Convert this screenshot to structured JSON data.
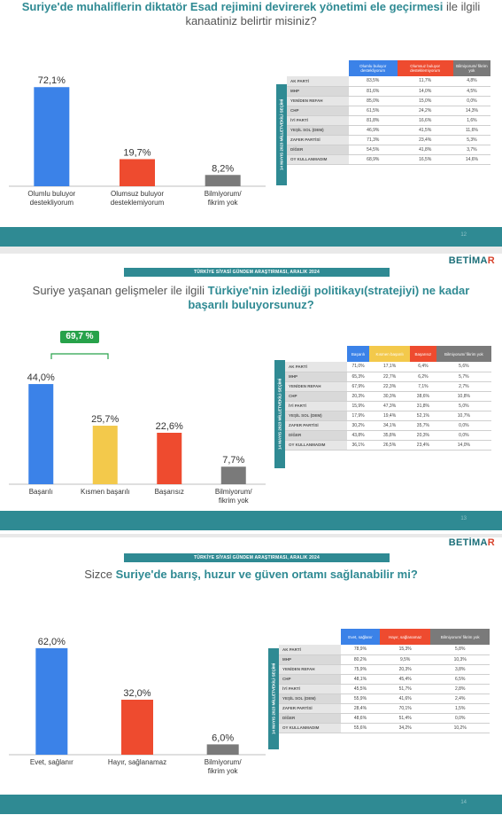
{
  "colors": {
    "blue": "#3b82e8",
    "red": "#ee4b2f",
    "yellow": "#f3c94b",
    "grey": "#7a7a7a",
    "teal": "#2f8a93",
    "green": "#27a24a"
  },
  "panel1": {
    "question_bold": "Suriye'de muhaliflerin diktatör Esad rejimini devirerek yönetimi ele geçirmesi",
    "question_rest_1": " ile ilgili",
    "question_line2": "kanaatiniz belirtir misiniz?",
    "page_number": "12",
    "chart_data": {
      "type": "bar",
      "categories": [
        "Olumlu buluyor destekliyorum",
        "Olumsuz buluyor desteklemiyorum",
        "Bilmiyorum/ fikrim yok"
      ],
      "values": [
        72.1,
        19.7,
        8.2
      ],
      "value_labels": [
        "72,1%",
        "19,7%",
        "8,2%"
      ],
      "colors": [
        "#3b82e8",
        "#ee4b2f",
        "#7a7a7a"
      ],
      "ylim": [
        0,
        100
      ]
    },
    "table": {
      "side_label": "14 MAYIS 2023 MİLLETVEKİLİ SEÇİMİ",
      "headers": [
        "Olumlu buluyor destekliyorum",
        "Olumsuz buluyor desteklemiyorum",
        "Bilmiyorum/ fikrim yok"
      ],
      "header_colors": [
        "#3b82e8",
        "#ee4b2f",
        "#7a7a7a"
      ],
      "rows": [
        {
          "party": "AK PARTİ",
          "values": [
            "83,5%",
            "11,7%",
            "4,8%"
          ]
        },
        {
          "party": "MHP",
          "values": [
            "81,6%",
            "14,0%",
            "4,5%"
          ]
        },
        {
          "party": "YENİDEN REFAH",
          "values": [
            "85,0%",
            "15,0%",
            "0,0%"
          ]
        },
        {
          "party": "CHP",
          "values": [
            "61,5%",
            "24,2%",
            "14,3%"
          ]
        },
        {
          "party": "İYİ PARTİ",
          "values": [
            "81,8%",
            "16,6%",
            "1,6%"
          ]
        },
        {
          "party": "YEŞİL SOL (DEM)",
          "values": [
            "46,9%",
            "41,5%",
            "11,6%"
          ]
        },
        {
          "party": "ZAFER PARTİSİ",
          "values": [
            "71,3%",
            "23,4%",
            "5,3%"
          ]
        },
        {
          "party": "DİĞER",
          "values": [
            "54,5%",
            "41,8%",
            "3,7%"
          ]
        },
        {
          "party": "OY KULLANMADIM",
          "values": [
            "68,9%",
            "16,5%",
            "14,6%"
          ]
        }
      ]
    }
  },
  "panel2": {
    "header": "TÜRKİYE SİYASİ GÜNDEM ARAŞTIRMASI, ARALIK 2024",
    "logo_main": "BETİMA",
    "logo_x": "R",
    "question_pre": "Suriye yaşanan gelişmeler ile ilgili ",
    "question_bold": "Türkiye'nin izlediği politikayı(stratejiyi) ne kadar",
    "question_line2": "başarılı buluyorsunuz?",
    "bracket_label": "69,7 %",
    "page_number": "13",
    "chart_data": {
      "type": "bar",
      "categories": [
        "Başarılı",
        "Kısmen başarılı",
        "Başarısız",
        "Bilmiyorum/ fikrim yok"
      ],
      "values": [
        44.0,
        25.7,
        22.6,
        7.7
      ],
      "value_labels": [
        "44,0%",
        "25,7%",
        "22,6%",
        "7,7%"
      ],
      "colors": [
        "#3b82e8",
        "#f3c94b",
        "#ee4b2f",
        "#7a7a7a"
      ],
      "ylim": [
        0,
        60
      ]
    },
    "table": {
      "side_label": "14 MAYIS 2023 MİLLETVEKİLİ SEÇİMİ",
      "headers": [
        "Başarılı",
        "Kısmen başarılı",
        "Başarısız",
        "Bilmiyorum/ fikrim yok"
      ],
      "header_colors": [
        "#3b82e8",
        "#f3c94b",
        "#ee4b2f",
        "#7a7a7a"
      ],
      "rows": [
        {
          "party": "AK PARTİ",
          "values": [
            "71,0%",
            "17,1%",
            "6,4%",
            "5,6%"
          ]
        },
        {
          "party": "MHP",
          "values": [
            "65,3%",
            "22,7%",
            "6,2%",
            "5,7%"
          ]
        },
        {
          "party": "YENİDEN REFAH",
          "values": [
            "67,9%",
            "22,3%",
            "7,1%",
            "2,7%"
          ]
        },
        {
          "party": "CHP",
          "values": [
            "20,3%",
            "30,3%",
            "38,6%",
            "10,8%"
          ]
        },
        {
          "party": "İYİ PARTİ",
          "values": [
            "15,9%",
            "47,3%",
            "31,8%",
            "5,0%"
          ]
        },
        {
          "party": "YEŞİL SOL (DEM)",
          "values": [
            "17,9%",
            "19,4%",
            "52,1%",
            "10,7%"
          ]
        },
        {
          "party": "ZAFER PARTİSİ",
          "values": [
            "30,2%",
            "34,1%",
            "35,7%",
            "0,0%"
          ]
        },
        {
          "party": "DİĞER",
          "values": [
            "43,8%",
            "35,8%",
            "20,3%",
            "0,0%"
          ]
        },
        {
          "party": "OY KULLANMADIM",
          "values": [
            "36,1%",
            "26,5%",
            "23,4%",
            "14,0%"
          ]
        }
      ]
    }
  },
  "panel3": {
    "header": "TÜRKİYE SİYASİ GÜNDEM ARAŞTIRMASI, ARALIK 2024",
    "logo_main": "BETİMA",
    "logo_x": "R",
    "question_pre": "Sizce ",
    "question_bold": "Suriye'de barış, huzur ve güven ortamı sağlanabilir mi?",
    "page_number": "14",
    "chart_data": {
      "type": "bar",
      "categories": [
        "Evet, sağlanır",
        "Hayır, sağlanamaz",
        "Bilmiyorum/ fikrim yok"
      ],
      "values": [
        62.0,
        32.0,
        6.0
      ],
      "value_labels": [
        "62,0%",
        "32,0%",
        "6,0%"
      ],
      "colors": [
        "#3b82e8",
        "#ee4b2f",
        "#7a7a7a"
      ],
      "ylim": [
        0,
        80
      ]
    },
    "table": {
      "side_label": "14 MAYIS 2023 MİLLETVEKİLİ SEÇİMİ",
      "headers": [
        "Evet, sağlanır",
        "Hayır, sağlanamaz",
        "Bilmiyorum/ fikrim yok"
      ],
      "header_colors": [
        "#3b82e8",
        "#ee4b2f",
        "#7a7a7a"
      ],
      "rows": [
        {
          "party": "AK PARTİ",
          "values": [
            "78,9%",
            "15,3%",
            "5,8%"
          ]
        },
        {
          "party": "MHP",
          "values": [
            "80,2%",
            "9,5%",
            "10,3%"
          ]
        },
        {
          "party": "YENİDEN REFAH",
          "values": [
            "75,9%",
            "20,3%",
            "3,8%"
          ]
        },
        {
          "party": "CHP",
          "values": [
            "48,1%",
            "45,4%",
            "6,5%"
          ]
        },
        {
          "party": "İYİ PARTİ",
          "values": [
            "45,5%",
            "51,7%",
            "2,8%"
          ]
        },
        {
          "party": "YEŞİL SOL (DEM)",
          "values": [
            "55,9%",
            "41,6%",
            "2,4%"
          ]
        },
        {
          "party": "ZAFER PARTİSİ",
          "values": [
            "28,4%",
            "70,1%",
            "1,5%"
          ]
        },
        {
          "party": "DİĞER",
          "values": [
            "48,6%",
            "51,4%",
            "0,0%"
          ]
        },
        {
          "party": "OY KULLANMADIM",
          "values": [
            "55,6%",
            "34,2%",
            "10,2%"
          ]
        }
      ]
    }
  }
}
